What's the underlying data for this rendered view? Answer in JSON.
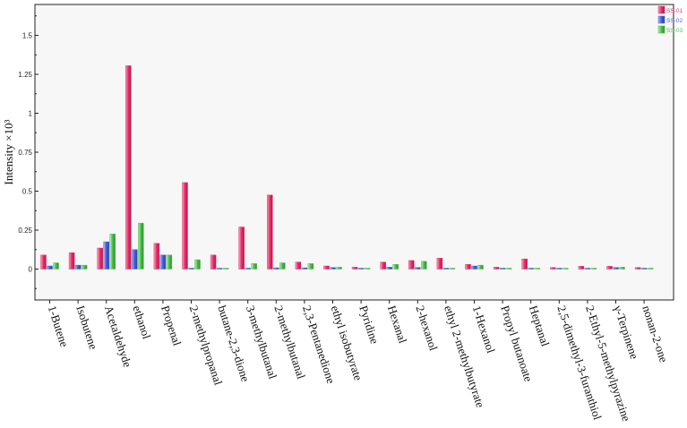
{
  "chart_data": {
    "type": "bar",
    "title": "",
    "xlabel": "",
    "ylabel": "Intensity ×10³",
    "ylim": [
      -0.2,
      1.7
    ],
    "yticks": [
      0,
      0.25,
      0.5,
      0.75,
      1,
      1.25,
      1.5
    ],
    "ytick_labels": [
      "0",
      "0.25",
      "0.5",
      "0.75",
      "1",
      "1.25",
      "1.5"
    ],
    "legend_position": "top-right",
    "grid": false,
    "categories": [
      "1-Butene",
      "Isobutene",
      "Acetaldehyde",
      "ethanol",
      "Propenal",
      "2-methylpropanal",
      "butane-2,3-dione",
      "3-methylbutanal",
      "2-methylbutanal",
      "2,3-Pentanedione",
      "ethyl isobutyrate",
      "Pyridine",
      "Hexanal",
      "2-hexanol",
      "ethyl 2-methylbutyrate",
      "1-Hexanol",
      "Propyl butanoate",
      "Heptanal",
      "2,5-dimethyl-3-furanthiol",
      "2-Ethyl-5-methylpyrazine",
      "γ-Terpinene",
      "nonan-2-one"
    ],
    "series": [
      {
        "name": "SS-01",
        "color": "#e8336a",
        "values": [
          0.09,
          0.105,
          0.135,
          1.305,
          0.165,
          0.555,
          0.09,
          0.27,
          0.475,
          0.045,
          0.02,
          0.012,
          0.045,
          0.055,
          0.07,
          0.03,
          0.012,
          0.065,
          0.01,
          0.018,
          0.018,
          0.01
        ]
      },
      {
        "name": "SS-02",
        "color": "#4a62d8",
        "values": [
          0.02,
          0.025,
          0.175,
          0.125,
          0.09,
          0.0,
          0.0,
          0.005,
          0.008,
          0.008,
          0.01,
          0.0,
          0.012,
          0.01,
          0.0,
          0.02,
          0.005,
          0.0,
          0.0,
          0.0,
          0.01,
          0.0
        ]
      },
      {
        "name": "SS-03",
        "color": "#4fbf4f",
        "values": [
          0.04,
          0.025,
          0.225,
          0.295,
          0.09,
          0.06,
          0.005,
          0.035,
          0.04,
          0.035,
          0.012,
          0.0,
          0.03,
          0.05,
          0.0,
          0.025,
          0.005,
          0.0,
          0.005,
          0.0,
          0.012,
          0.0
        ]
      }
    ]
  }
}
